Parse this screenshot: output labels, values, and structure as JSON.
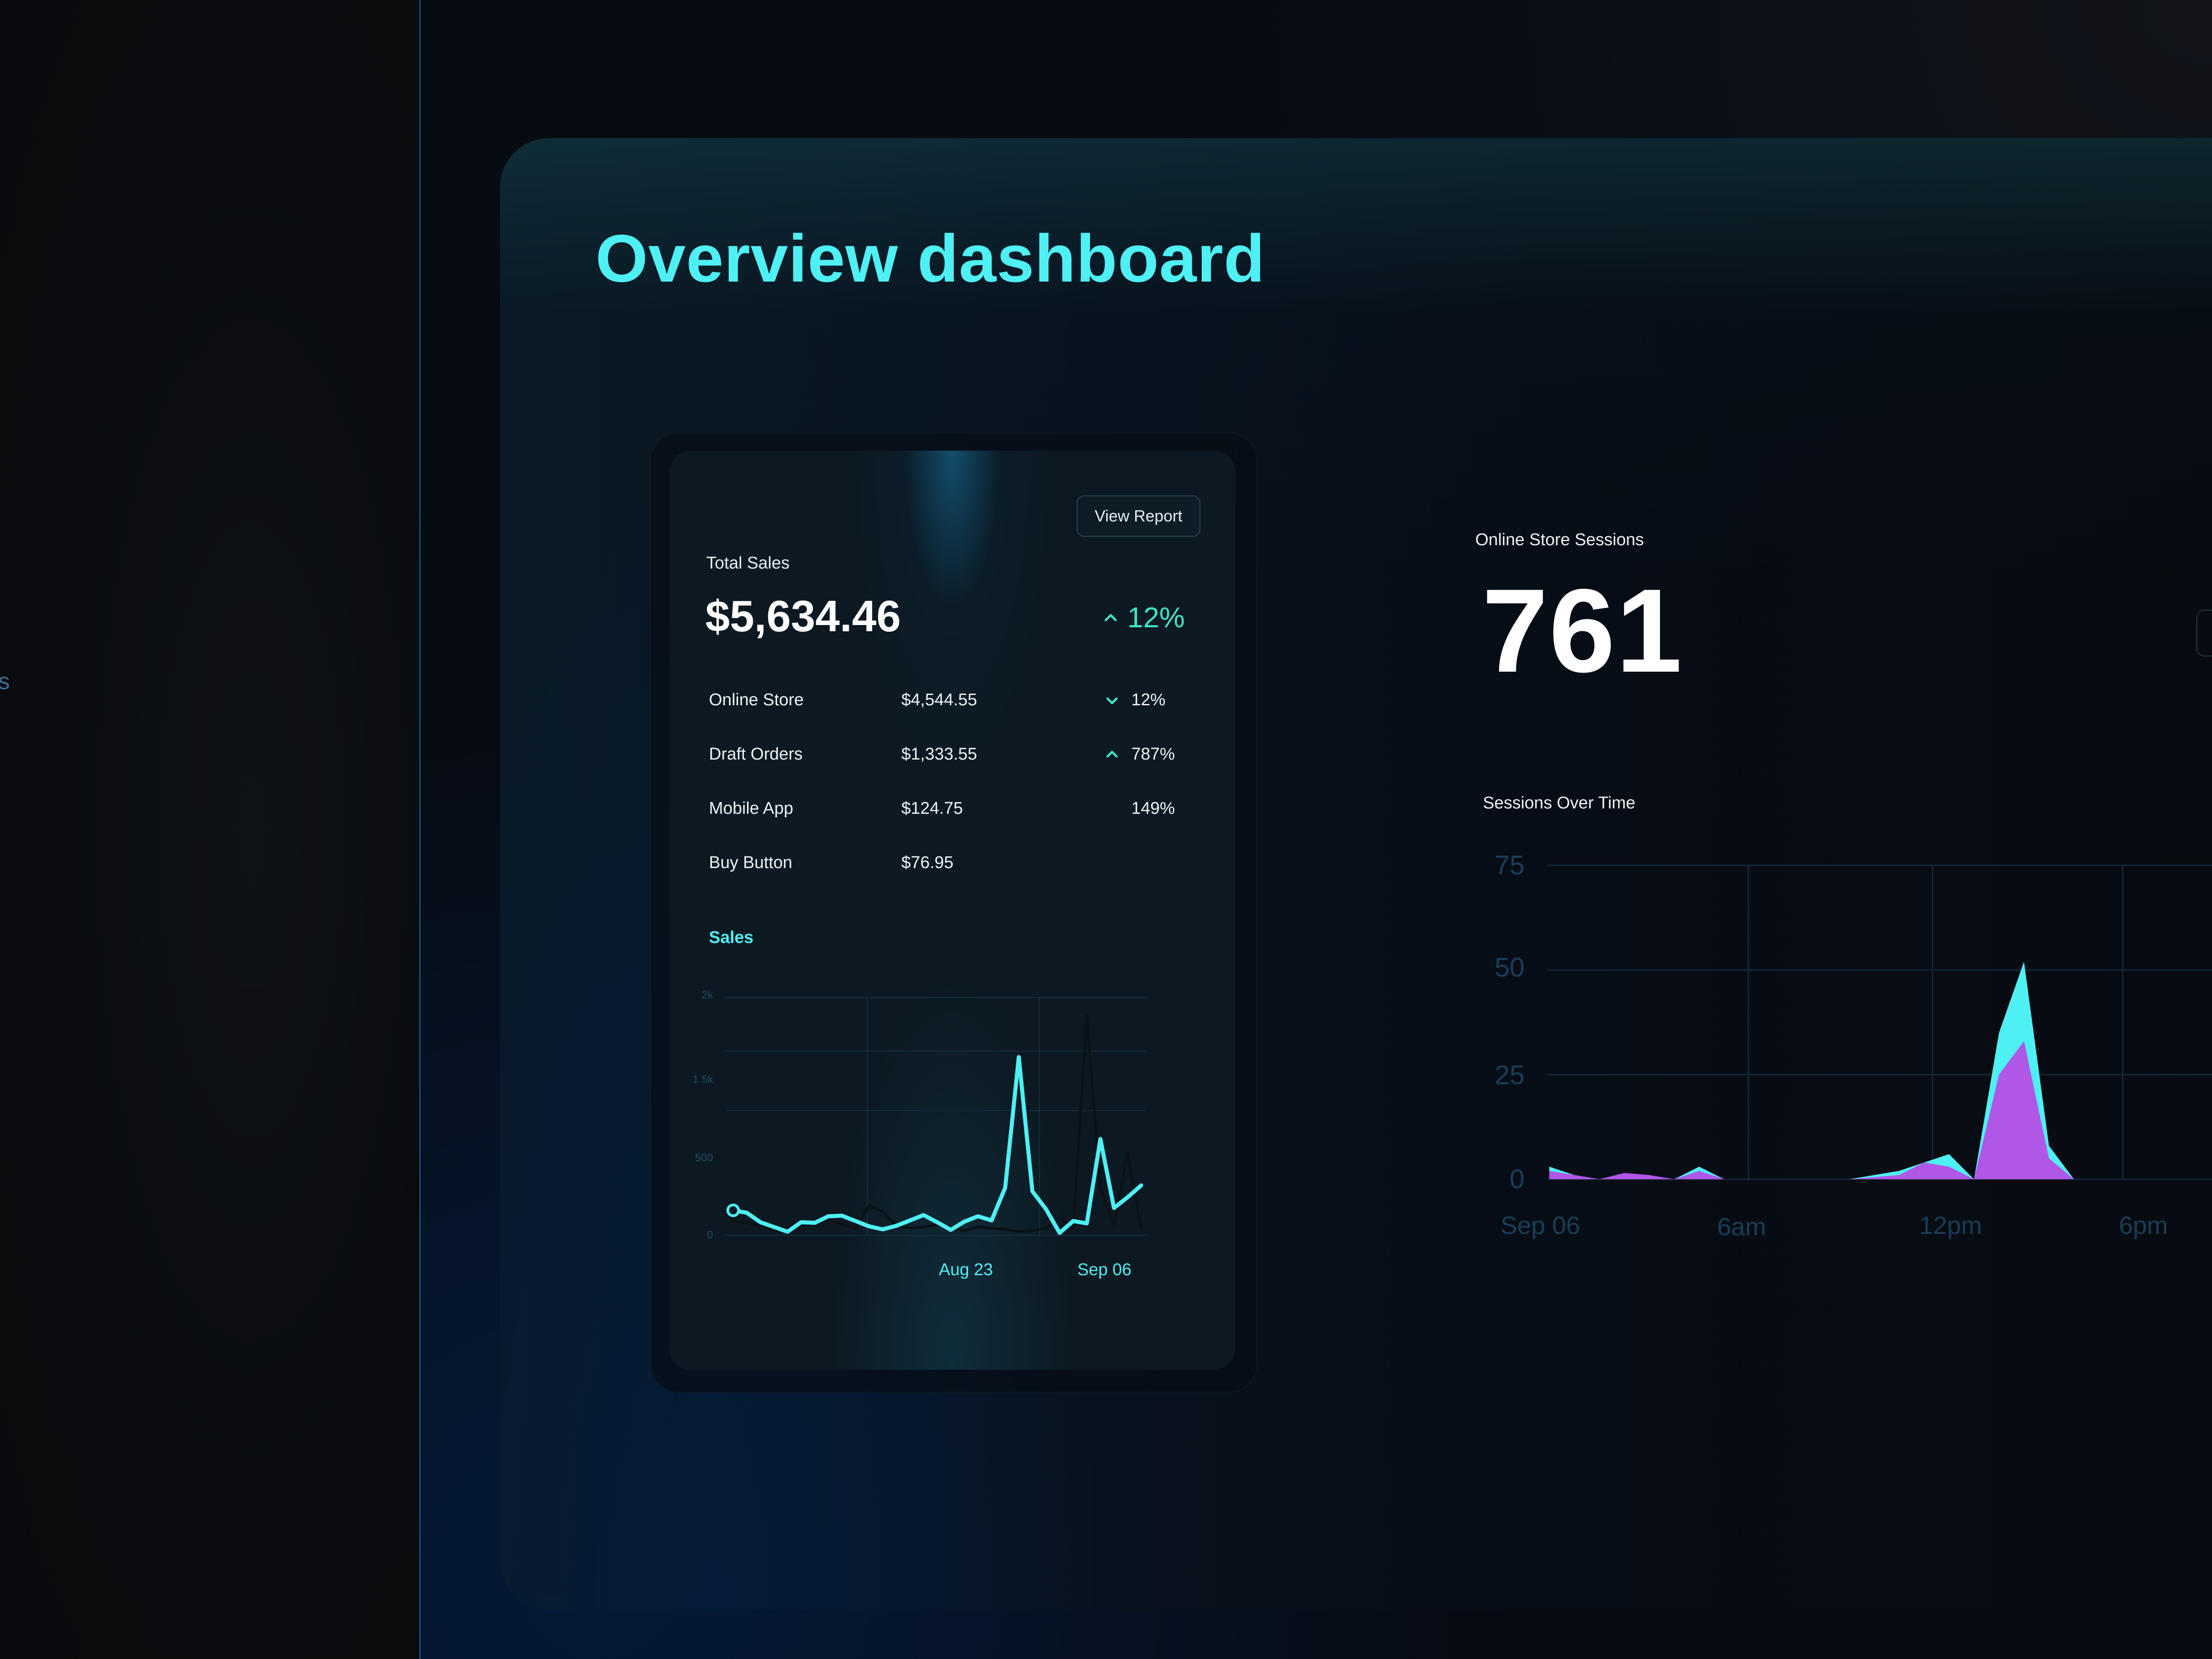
{
  "left_fragment": "s",
  "page_title": "Overview dashboard",
  "card": {
    "view_report": "View Report",
    "total_sales_label": "Total Sales",
    "total_sales_value": "$5,634.46",
    "total_change": "12%",
    "rows": [
      {
        "name": "Online Store",
        "value": "$4,544.55",
        "change": "12%",
        "direction": "down"
      },
      {
        "name": "Draft Orders",
        "value": "$1,333.55",
        "change": "787%",
        "direction": "up"
      },
      {
        "name": "Mobile App",
        "value": "$124.75",
        "change": "149%",
        "direction": "none"
      },
      {
        "name": "Buy Button",
        "value": "$76.95",
        "change": "",
        "direction": "none"
      }
    ],
    "sales_chart_title": "Sales"
  },
  "sessions": {
    "label": "Online Store Sessions",
    "value": "761",
    "chart_title": "Sessions Over Time"
  },
  "colors": {
    "accent": "#4ff0f4",
    "positive": "#3ee6c4",
    "purple": "#b057e8",
    "grid": "#15303f"
  },
  "chart_data": [
    {
      "type": "line",
      "title": "Sales",
      "yticks": [
        "2k",
        "1.5k",
        "500",
        "0"
      ],
      "ylim": [
        0,
        2000
      ],
      "xticks": [
        "Aug 23",
        "Sep 06"
      ],
      "series": [
        {
          "values": [
            210,
            190,
            110,
            70,
            30,
            110,
            105,
            160,
            165,
            120,
            75,
            50,
            80,
            125,
            170,
            110,
            45,
            115,
            160,
            125,
            400,
            1500,
            370,
            220,
            20,
            120,
            100,
            810,
            230,
            320,
            420
          ]
        },
        {
          "values": [
            120,
            100,
            80,
            40,
            60,
            90,
            110,
            130,
            90,
            60,
            250,
            200,
            80,
            60,
            70,
            90,
            60,
            40,
            70,
            60,
            50,
            30,
            40,
            60,
            150,
            60,
            1850,
            400,
            80,
            700,
            50
          ]
        }
      ]
    },
    {
      "type": "area",
      "title": "Sessions Over Time",
      "yticks": [
        "75",
        "50",
        "25",
        "0"
      ],
      "ylim": [
        0,
        75
      ],
      "xticks": [
        "Sep 06",
        "6am",
        "12pm",
        "6pm"
      ],
      "series": [
        {
          "values": [
            3,
            1,
            0,
            1,
            0,
            0,
            3,
            0,
            0,
            0,
            0,
            0,
            0,
            1,
            2,
            4,
            6,
            0,
            35,
            52,
            8,
            0,
            0,
            0
          ]
        },
        {
          "values": [
            2,
            1,
            0,
            1.5,
            1,
            0,
            2,
            0,
            0,
            0,
            0,
            0,
            0,
            0.5,
            1,
            4,
            3,
            0,
            25,
            33,
            5,
            0,
            0,
            0
          ]
        }
      ]
    }
  ]
}
